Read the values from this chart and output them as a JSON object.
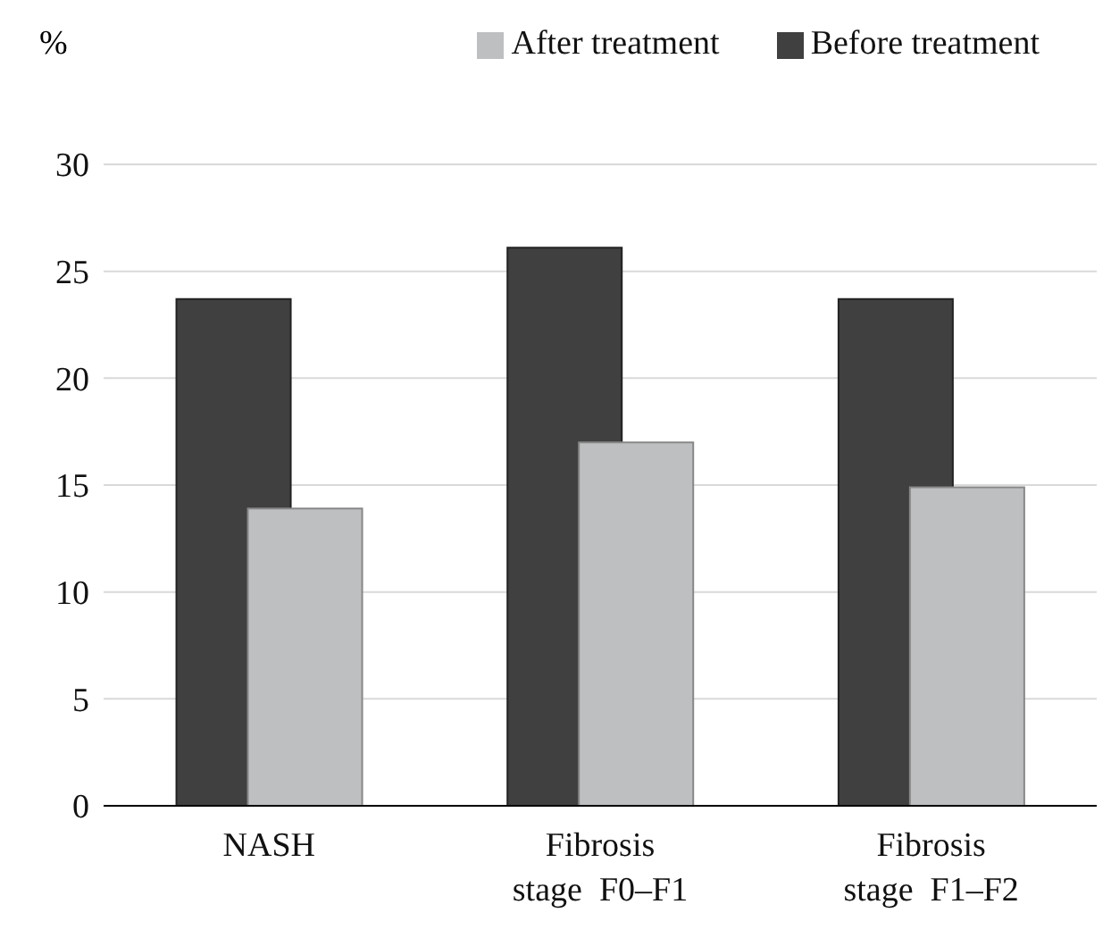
{
  "chart_data": {
    "type": "bar",
    "ylabel": "%",
    "categories": [
      "NASH",
      "Fibrosis\nstage  F0–F1",
      "Fibrosis\nstage  F1–F2"
    ],
    "series": [
      {
        "name": "Before treatment",
        "color": "#404040",
        "values": [
          23.7,
          26.1,
          23.7
        ]
      },
      {
        "name": "After treatment",
        "color": "#bebfc1",
        "values": [
          13.9,
          17.0,
          14.9
        ]
      }
    ],
    "ylim": [
      0,
      30
    ],
    "yticks": [
      0,
      5,
      10,
      15,
      20,
      25,
      30
    ],
    "grid": "y",
    "legend": "top right"
  }
}
